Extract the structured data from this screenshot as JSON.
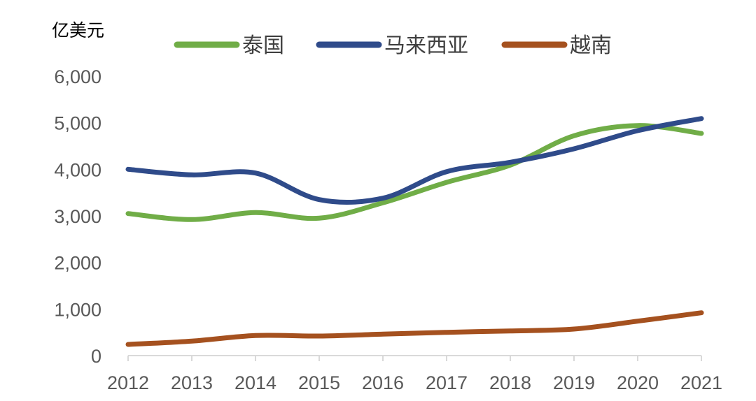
{
  "chart_data": {
    "type": "line",
    "ylabel": "亿美元",
    "title": "",
    "xlabel": "",
    "x": [
      "2012",
      "2013",
      "2014",
      "2015",
      "2016",
      "2017",
      "2018",
      "2019",
      "2020",
      "2021"
    ],
    "ylim": [
      0,
      6000
    ],
    "yticks": [
      0,
      1000,
      2000,
      3000,
      4000,
      5000,
      6000
    ],
    "ytick_labels": [
      "0",
      "1,000",
      "2,000",
      "3,000",
      "4,000",
      "5,000",
      "6,000"
    ],
    "grid": false,
    "legend": "top",
    "series": [
      {
        "name": "泰国",
        "color": "#70AD47",
        "values": [
          3050,
          2920,
          3070,
          2950,
          3280,
          3720,
          4090,
          4720,
          4940,
          4770
        ]
      },
      {
        "name": "马来西亚",
        "color": "#2F4B8A",
        "values": [
          4000,
          3880,
          3920,
          3350,
          3380,
          3950,
          4150,
          4440,
          4830,
          5090
        ]
      },
      {
        "name": "越南",
        "color": "#A5511F",
        "values": [
          240,
          310,
          430,
          420,
          460,
          500,
          530,
          570,
          740,
          920
        ]
      }
    ]
  }
}
